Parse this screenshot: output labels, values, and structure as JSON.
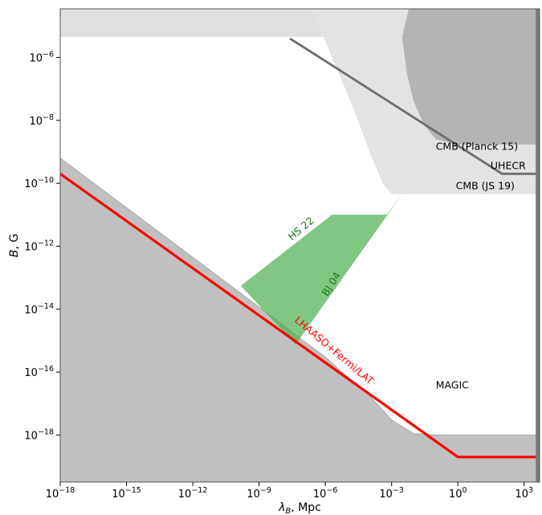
{
  "chart_data": {
    "type": "area",
    "title": "",
    "xlabel": "λ_B, Mpc",
    "ylabel": "B, G",
    "x_scale": "log",
    "y_scale": "log",
    "xlim": [
      1e-18,
      5000
    ],
    "ylim": [
      3.2e-20,
      3.5e-05
    ],
    "grid": false,
    "x_ticks": [
      {
        "value": 1e-18,
        "base": "10",
        "exp": "−18"
      },
      {
        "value": 1e-15,
        "base": "10",
        "exp": "−15"
      },
      {
        "value": 1e-12,
        "base": "10",
        "exp": "−12"
      },
      {
        "value": 1e-09,
        "base": "10",
        "exp": "−9"
      },
      {
        "value": 1e-06,
        "base": "10",
        "exp": "−6"
      },
      {
        "value": 0.001,
        "base": "10",
        "exp": "−3"
      },
      {
        "value": 1,
        "base": "10",
        "exp": "0"
      },
      {
        "value": 1000,
        "base": "10",
        "exp": "3"
      }
    ],
    "y_ticks": [
      {
        "value": 1e-06,
        "base": "10",
        "exp": "−6"
      },
      {
        "value": 1e-08,
        "base": "10",
        "exp": "−8"
      },
      {
        "value": 1e-10,
        "base": "10",
        "exp": "−10"
      },
      {
        "value": 1e-12,
        "base": "10",
        "exp": "−12"
      },
      {
        "value": 1e-14,
        "base": "10",
        "exp": "−14"
      },
      {
        "value": 1e-16,
        "base": "10",
        "exp": "−16"
      },
      {
        "value": 1e-18,
        "base": "10",
        "exp": "−18"
      }
    ],
    "regions": [
      {
        "name": "MAGIC",
        "fill": "#c0c0c0",
        "stroke": "#a8a8a8",
        "alpha": 1,
        "points": [
          [
            1e-18,
            6.3e-10
          ],
          [
            1e-08,
            3.5e-15
          ],
          [
            1e-07,
            1e-15
          ],
          [
            1e-06,
            3e-16
          ],
          [
            1e-05,
            7e-17
          ],
          [
            0.0001,
            1.8e-17
          ],
          [
            0.001,
            3e-18
          ],
          [
            0.01,
            1.1e-18
          ],
          [
            0.1,
            1e-18
          ],
          [
            5000,
            1e-18
          ],
          [
            5000,
            3.2e-20
          ],
          [
            1e-18,
            3.2e-20
          ]
        ]
      },
      {
        "name": "top-excluded",
        "fill": "#e0e0e0",
        "stroke": "none",
        "alpha": 1,
        "points": [
          [
            1e-18,
            3.5e-05
          ],
          [
            5000,
            3.5e-05
          ],
          [
            5000,
            4.5e-06
          ],
          [
            1e-18,
            4.5e-06
          ]
        ]
      },
      {
        "name": "CMB (JS 19)",
        "fill": "#e3e3e3",
        "stroke": "none",
        "alpha": 1,
        "points": [
          [
            2.5e-07,
            3.5e-05
          ],
          [
            5000,
            3.5e-05
          ],
          [
            5000,
            4.5e-11
          ],
          [
            0.001,
            4.5e-11
          ],
          [
            0.0004,
            1e-10
          ],
          [
            0.0001,
            1e-09
          ],
          [
            3e-05,
            1e-08
          ],
          [
            8e-06,
            1e-07
          ],
          [
            2e-06,
            1e-06
          ]
        ]
      },
      {
        "name": "CMB (Planck 15)",
        "fill": "#b4b4b4",
        "stroke": "none",
        "alpha": 1,
        "points": [
          [
            0.006,
            3.5e-05
          ],
          [
            5000,
            3.5e-05
          ],
          [
            5000,
            1.7e-09
          ],
          [
            1,
            1.7e-09
          ],
          [
            0.1,
            2.5e-09
          ],
          [
            0.03,
            7e-09
          ],
          [
            0.01,
            4e-08
          ],
          [
            0.005,
            3e-07
          ],
          [
            0.003,
            4.5e-06
          ]
        ]
      },
      {
        "name": "HS 22 / BJ 04",
        "fill": "#4caf50",
        "stroke": "none",
        "alpha": 0.7,
        "points": [
          [
            1.5e-10,
            5.5e-14
          ],
          [
            2e-06,
            1e-11
          ],
          [
            0.0006,
            1e-11
          ],
          [
            0.003,
            4.5e-11
          ],
          [
            4.5e-08,
            7.5e-16
          ]
        ]
      }
    ],
    "series": [
      {
        "name": "LHAASO+Fermi/LAT",
        "color": "#ff0000",
        "width": 3.2,
        "x": [
          1e-18,
          1,
          5000
        ],
        "y": [
          2e-10,
          2e-19,
          2e-19
        ]
      },
      {
        "name": "UHECR",
        "color": "#6e6e6e",
        "width": 2.8,
        "x": [
          2.5e-08,
          100,
          5000
        ],
        "y": [
          4e-06,
          2e-10,
          2e-10
        ]
      },
      {
        "name": "right-edge",
        "color": "#7a7a7a",
        "width": 7,
        "x": [
          4500,
          4500
        ],
        "y": [
          3.2e-20,
          3.5e-05
        ]
      }
    ],
    "annotations": [
      {
        "text": "CMB (Planck 15)",
        "x": 0.1,
        "y": 1.15e-09,
        "color": "#000000",
        "rotate": 0,
        "anchor": "start"
      },
      {
        "text": "UHECR",
        "x": 30,
        "y": 2.8e-10,
        "color": "#000000",
        "rotate": 0,
        "anchor": "start"
      },
      {
        "text": "CMB (JS 19)",
        "x": 0.8,
        "y": 6.5e-11,
        "color": "#000000",
        "rotate": 0,
        "anchor": "start"
      },
      {
        "text": "HS 22",
        "x": 1e-07,
        "y": 3e-12,
        "color": "#1a7a1a",
        "rotate": -40,
        "anchor": "middle"
      },
      {
        "text": "BJ 04",
        "x": 2.5e-06,
        "y": 5.5e-14,
        "color": "#1a7a1a",
        "rotate": -58,
        "anchor": "middle"
      },
      {
        "text": "LHAASO+Fermi/LAT",
        "x": 2e-06,
        "y": 4e-16,
        "color": "#ff0000",
        "rotate": 40,
        "anchor": "middle"
      },
      {
        "text": "MAGIC",
        "x": 0.1,
        "y": 3e-17,
        "color": "#000000",
        "rotate": 0,
        "anchor": "start"
      }
    ]
  }
}
